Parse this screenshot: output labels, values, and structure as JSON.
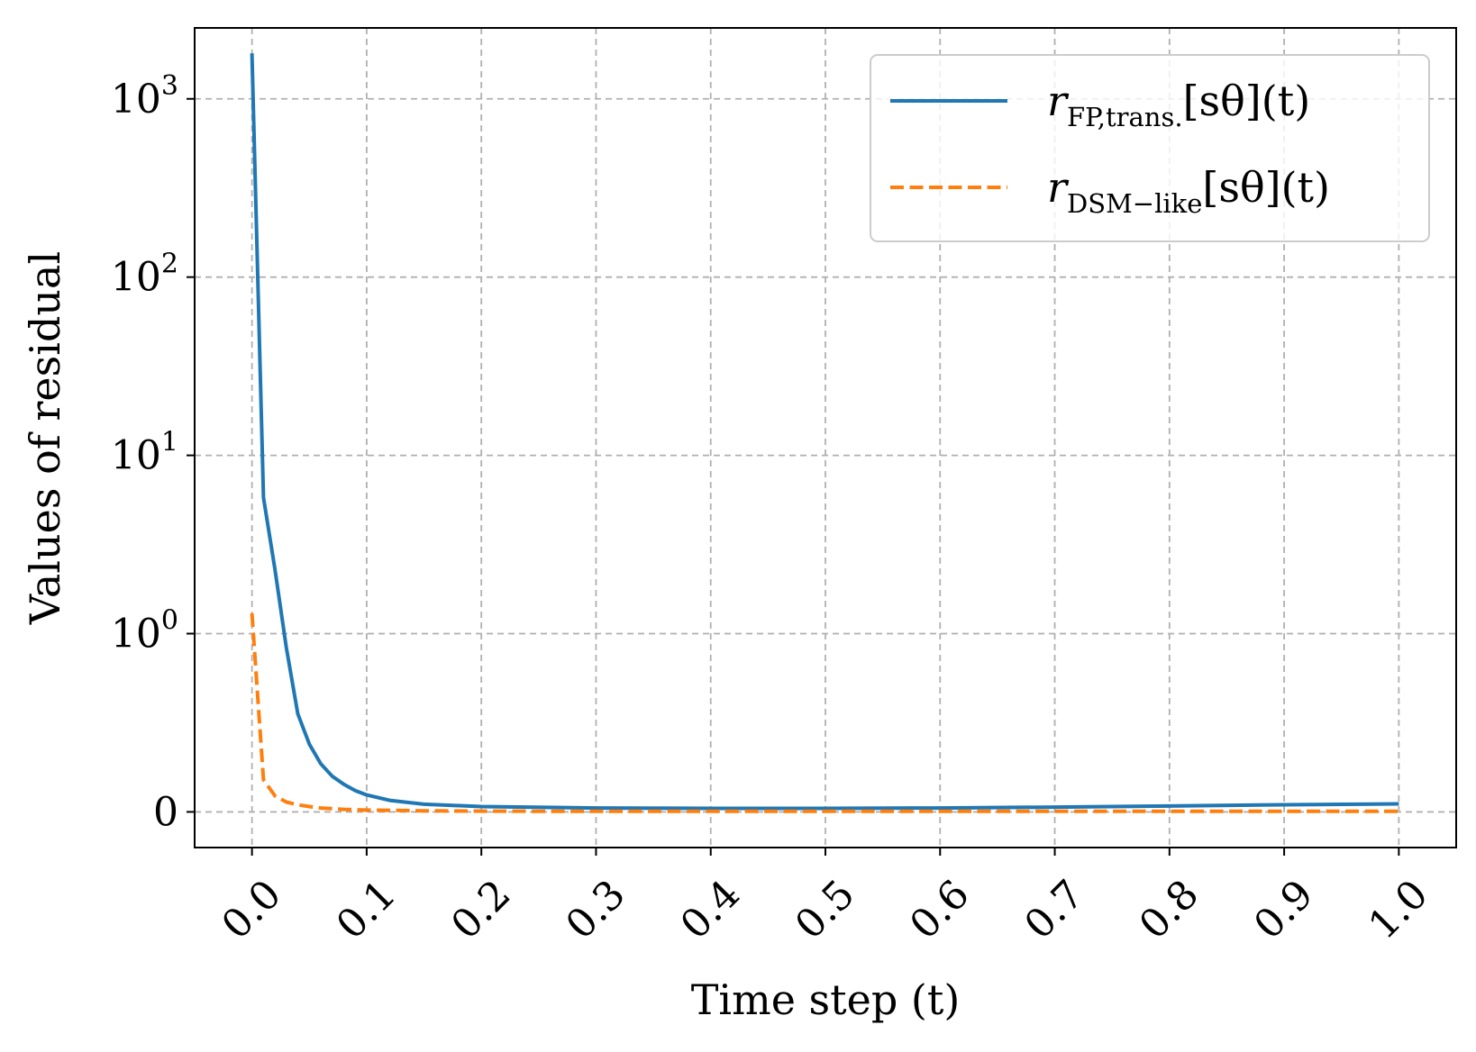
{
  "chart_data": {
    "type": "line",
    "xlabel": "Time step (t)",
    "ylabel": "Values of residual",
    "xlim": [
      -0.05,
      1.05
    ],
    "y_scale": "symlog",
    "y_linthresh": 1,
    "ylim": [
      -0.2,
      2500
    ],
    "x_ticks": [
      0.0,
      0.1,
      0.2,
      0.3,
      0.4,
      0.5,
      0.6,
      0.7,
      0.8,
      0.9,
      1.0
    ],
    "x_tick_labels": [
      "0.0",
      "0.1",
      "0.2",
      "0.3",
      "0.4",
      "0.5",
      "0.6",
      "0.7",
      "0.8",
      "0.9",
      "1.0"
    ],
    "x_tick_rotation": 45,
    "y_ticks": [
      {
        "value": 0,
        "base": "0",
        "exp": ""
      },
      {
        "value": 1,
        "base": "10",
        "exp": "0"
      },
      {
        "value": 10,
        "base": "10",
        "exp": "1"
      },
      {
        "value": 100,
        "base": "10",
        "exp": "2"
      },
      {
        "value": 1000,
        "base": "10",
        "exp": "3"
      }
    ],
    "grid": true,
    "grid_style": "dashed",
    "legend_position": "top-right",
    "series": [
      {
        "name": "r_{FP,trans.}[s_θ](t)",
        "legend_main": "r",
        "legend_sub": "FP,trans.",
        "legend_rest": "[sθ](t)",
        "color": "#1f77b4",
        "dash": "solid",
        "x": [
          0.0,
          0.01,
          0.02,
          0.03,
          0.04,
          0.05,
          0.06,
          0.07,
          0.08,
          0.09,
          0.1,
          0.12,
          0.15,
          0.2,
          0.3,
          0.4,
          0.5,
          0.6,
          0.7,
          0.8,
          0.9,
          1.0
        ],
        "y": [
          1800,
          5.8,
          2.3,
          0.92,
          0.55,
          0.38,
          0.27,
          0.2,
          0.155,
          0.12,
          0.095,
          0.065,
          0.043,
          0.03,
          0.022,
          0.02,
          0.02,
          0.022,
          0.027,
          0.033,
          0.04,
          0.045
        ]
      },
      {
        "name": "r_{DSM−like}[s_θ](t)",
        "legend_main": "r",
        "legend_sub": "DSM−like",
        "legend_rest": "[sθ](t)",
        "color": "#ff7f0e",
        "dash": "dashed",
        "x": [
          0.0,
          0.01,
          0.02,
          0.03,
          0.04,
          0.05,
          0.06,
          0.08,
          0.1,
          0.15,
          0.2,
          0.3,
          0.4,
          0.5,
          0.6,
          0.7,
          0.8,
          0.9,
          1.0
        ],
        "y": [
          1.3,
          0.18,
          0.09,
          0.055,
          0.04,
          0.03,
          0.022,
          0.014,
          0.01,
          0.006,
          0.004,
          0.003,
          0.003,
          0.003,
          0.003,
          0.003,
          0.003,
          0.003,
          0.003
        ]
      }
    ]
  }
}
